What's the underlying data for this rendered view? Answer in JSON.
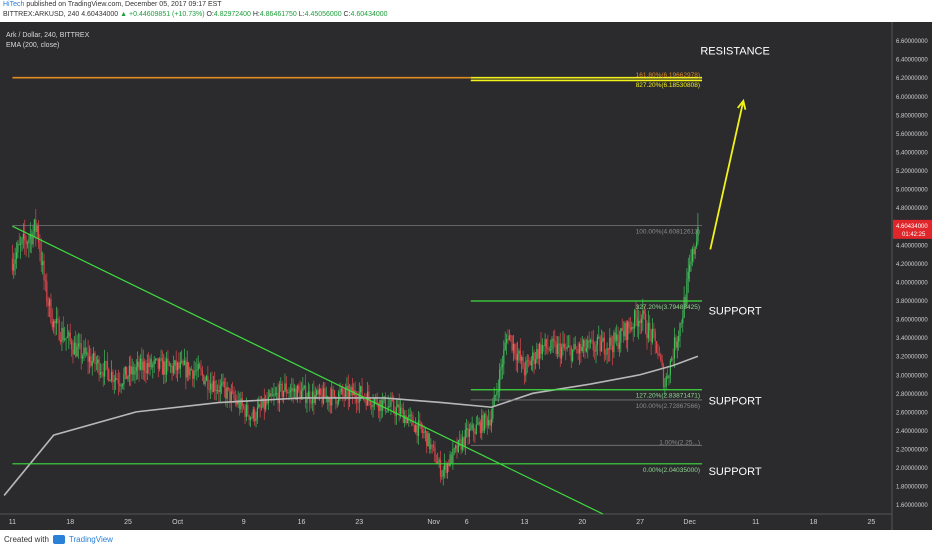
{
  "header": {
    "author": "HiTech",
    "published": " published on TradingView.com, December 05, 2017 09:17 EST",
    "symbol": "BITTREX:ARKUSD, 240",
    "last": " 4.60434000",
    "change": "+0.44609851 (+10.73%)",
    "open_label": " O:",
    "open": "4.82972400",
    "high_label": " H:",
    "high": "4.86461750",
    "low_label": " L:",
    "low": "4.45056000",
    "close_label": " C:",
    "close": "4.60434000"
  },
  "chart_title": "Ark / Dollar, 240, BITTREX",
  "ema_label": "EMA (200, close)",
  "price_tag": {
    "value": "4.60434000",
    "countdown": "01:42:25"
  },
  "footer": {
    "created": "Created with",
    "brand": "TradingView"
  },
  "colors": {
    "bg": "#2b2b2e",
    "up": "#3fbf5a",
    "down": "#e0464b",
    "ema": "#b8b8b8",
    "trend": "#3ddc3d",
    "resistance": "#e08b22",
    "arrow": "#f2f21a",
    "fib": "#7a7a7a"
  },
  "chart_data": {
    "type": "candlestick",
    "ylim": [
      1.5,
      6.8
    ],
    "y_ticks": [
      "1.60000000",
      "1.80000000",
      "2.00000000",
      "2.20000000",
      "2.40000000",
      "2.60000000",
      "2.80000000",
      "3.00000000",
      "3.20000000",
      "3.40000000",
      "3.60000000",
      "3.80000000",
      "4.00000000",
      "4.20000000",
      "4.40000000",
      "4.60000000",
      "4.80000000",
      "5.00000000",
      "5.20000000",
      "5.40000000",
      "5.60000000",
      "5.80000000",
      "6.00000000",
      "6.20000000",
      "6.40000000",
      "6.60000000"
    ],
    "x_ticks": [
      "11",
      "18",
      "25",
      "Oct",
      "9",
      "16",
      "23",
      "Nov",
      "6",
      "13",
      "20",
      "27",
      "Dec",
      "11",
      "18",
      "25"
    ],
    "x_tick_days": [
      0,
      7,
      14,
      20,
      28,
      35,
      42,
      51,
      55,
      62,
      69,
      76,
      82,
      90,
      97,
      104
    ],
    "x_range_days": [
      -1.5,
      106.5
    ],
    "candle_path": [
      [
        0,
        4.25
      ],
      [
        3,
        4.6
      ],
      [
        4,
        3.9
      ],
      [
        5,
        3.55
      ],
      [
        8,
        3.25
      ],
      [
        13,
        2.95
      ],
      [
        16,
        3.1
      ],
      [
        22,
        3.05
      ],
      [
        26,
        2.8
      ],
      [
        29,
        2.55
      ],
      [
        33,
        2.85
      ],
      [
        37,
        2.75
      ],
      [
        42,
        2.8
      ],
      [
        47,
        2.6
      ],
      [
        50,
        2.35
      ],
      [
        52,
        1.95
      ],
      [
        55,
        2.35
      ],
      [
        58,
        2.55
      ],
      [
        60,
        3.45
      ],
      [
        62,
        3.05
      ],
      [
        64,
        3.3
      ],
      [
        68,
        3.25
      ],
      [
        73,
        3.35
      ],
      [
        76,
        3.65
      ],
      [
        78,
        3.3
      ],
      [
        79,
        2.9
      ],
      [
        81,
        3.6
      ],
      [
        82,
        4.1
      ],
      [
        83,
        4.6
      ]
    ],
    "ema_path": [
      [
        -1,
        1.7
      ],
      [
        5,
        2.35
      ],
      [
        15,
        2.6
      ],
      [
        25,
        2.7
      ],
      [
        35,
        2.75
      ],
      [
        45,
        2.75
      ],
      [
        52,
        2.7
      ],
      [
        58,
        2.65
      ],
      [
        63,
        2.8
      ],
      [
        70,
        2.9
      ],
      [
        76,
        3.0
      ],
      [
        80,
        3.1
      ],
      [
        83,
        3.2
      ]
    ],
    "trendline": [
      [
        0,
        4.6
      ],
      [
        71.5,
        1.5
      ]
    ],
    "resistance_line": [
      [
        0,
        6.2
      ],
      [
        83.5,
        6.2
      ]
    ],
    "fib_levels": [
      {
        "label": "161.80%(6.19662978)",
        "value": 6.1966
      },
      {
        "label": "827.20%(6.18530808)",
        "value": 6.1853
      },
      {
        "label": "100.00%(4.60812613)",
        "value": 4.6081
      },
      {
        "label": "327.20%(3.79488425)",
        "value": 3.7949
      },
      {
        "label": "127.20%(2.83871471)",
        "value": 2.8387
      },
      {
        "label": "100.00%(2.72867566)",
        "value": 2.7287
      },
      {
        "label": "1.00%(2.25...)",
        "value": 2.24
      },
      {
        "label": "0.00%(2.04035000)",
        "value": 2.0404
      }
    ],
    "support_lines": [
      3.7949,
      2.8387,
      2.0404
    ],
    "annotations": [
      {
        "text": "RESISTANCE",
        "day": 87.5,
        "value": 6.45
      },
      {
        "text": "SUPPORT",
        "day": 87.5,
        "value": 3.65
      },
      {
        "text": "SUPPORT",
        "day": 87.5,
        "value": 2.68
      },
      {
        "text": "SUPPORT",
        "day": 87.5,
        "value": 1.92
      }
    ],
    "arrow": [
      [
        84.5,
        4.35
      ],
      [
        88.5,
        5.95
      ]
    ]
  }
}
